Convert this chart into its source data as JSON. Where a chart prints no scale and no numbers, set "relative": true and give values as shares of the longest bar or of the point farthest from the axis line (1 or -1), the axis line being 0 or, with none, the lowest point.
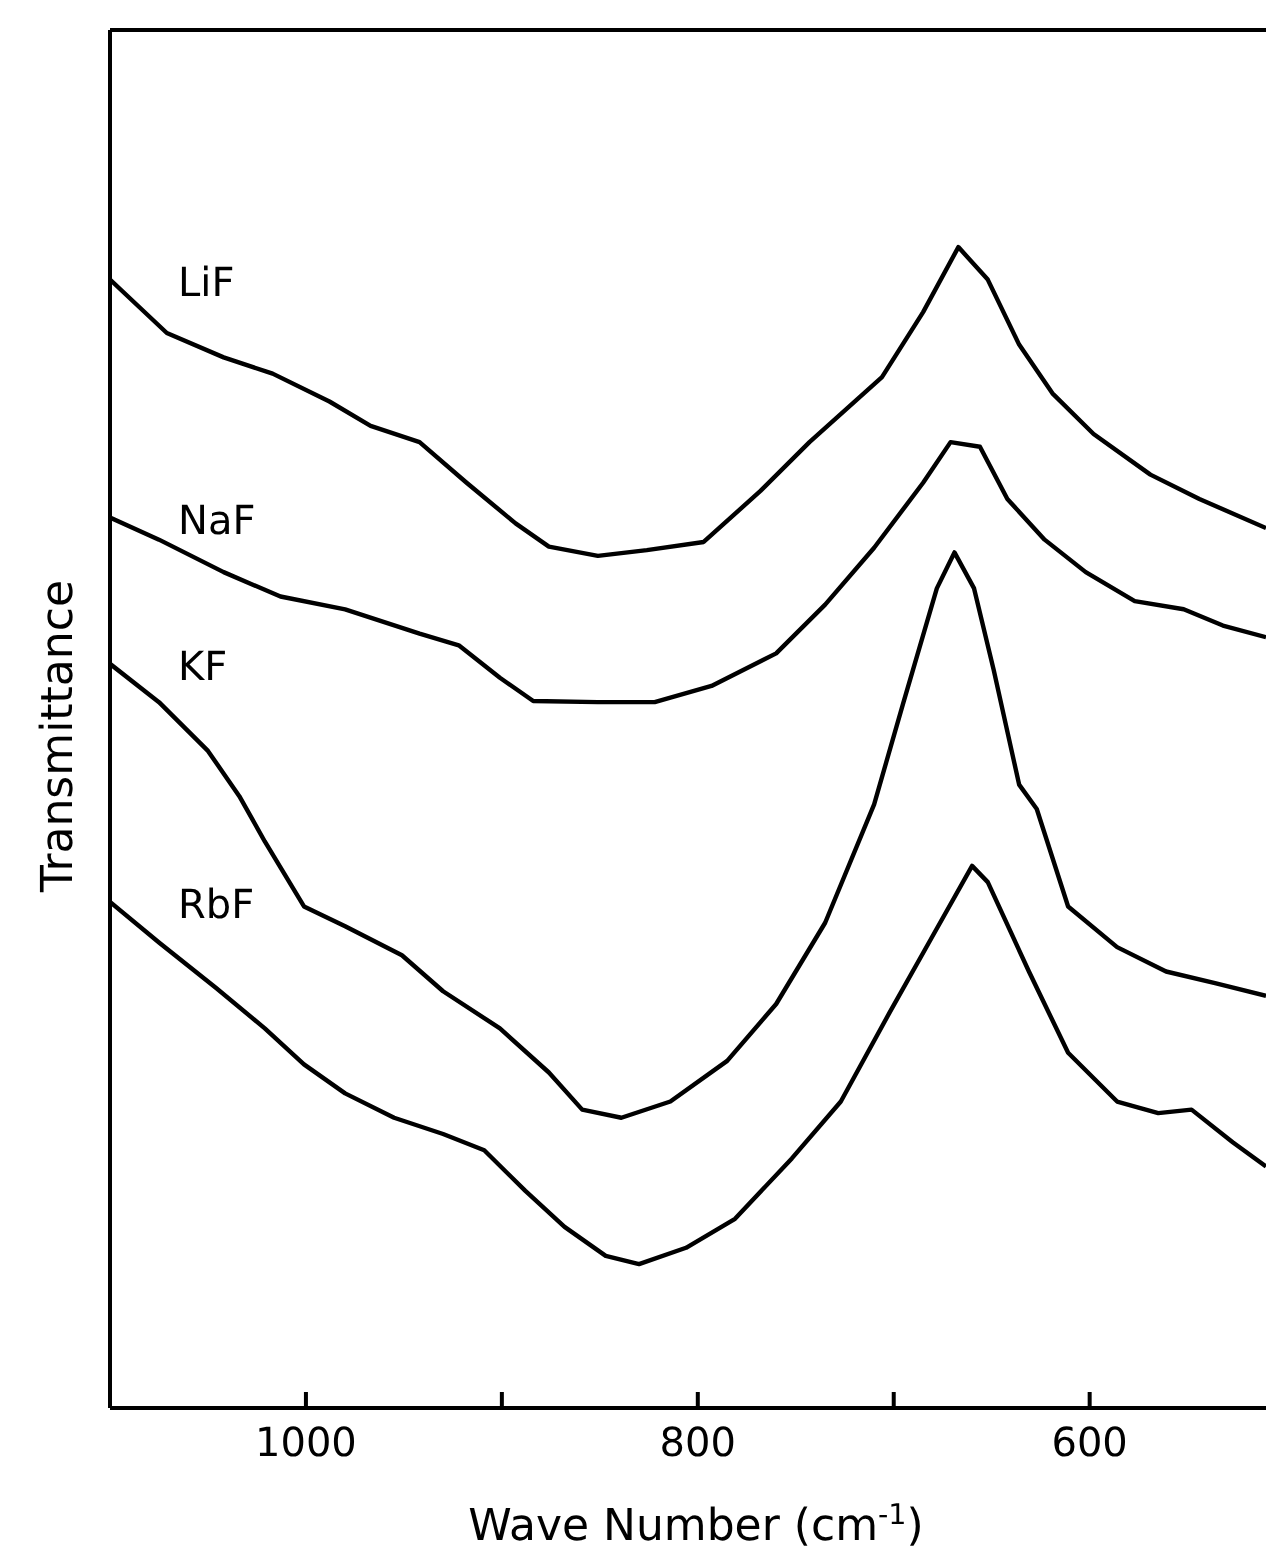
{
  "chart_data": {
    "type": "line",
    "relative": true,
    "xlabel": "Wave Number (cm$^{-1}$)",
    "ylabel": "Transmittance",
    "xlim": [
      1100,
      510
    ],
    "xticks": [
      1000,
      {
        "value": 900,
        "label": null
      },
      800,
      {
        "value": 700,
        "label": null
      },
      600
    ],
    "legend": false,
    "marker": "none",
    "line_style": "solid",
    "series": [
      {
        "name": "LiF",
        "color": "#000000",
        "x": [
          1100,
          1071,
          1042,
          1017,
          988,
          967,
          942,
          918,
          893,
          876,
          851,
          826,
          797,
          768,
          743,
          706,
          685,
          667,
          652,
          636,
          619,
          598,
          569,
          544,
          510
        ],
        "values": [
          0.972,
          0.926,
          0.905,
          0.891,
          0.867,
          0.846,
          0.832,
          0.797,
          0.762,
          0.742,
          0.734,
          0.739,
          0.746,
          0.79,
          0.832,
          0.888,
          0.944,
          1,
          0.972,
          0.916,
          0.874,
          0.839,
          0.804,
          0.783,
          0.758
        ]
      },
      {
        "name": "NaF",
        "color": "#000000",
        "x": [
          1100,
          1075,
          1042,
          1013,
          980,
          942,
          922,
          901,
          884,
          851,
          822,
          793,
          760,
          735,
          710,
          685,
          671,
          656,
          642,
          623,
          602,
          577,
          552,
          532,
          510
        ],
        "values": [
          0.767,
          0.748,
          0.72,
          0.699,
          0.688,
          0.667,
          0.657,
          0.629,
          0.609,
          0.608,
          0.608,
          0.622,
          0.65,
          0.692,
          0.741,
          0.797,
          0.832,
          0.828,
          0.783,
          0.748,
          0.72,
          0.695,
          0.688,
          0.674,
          0.664
        ]
      },
      {
        "name": "KF",
        "color": "#000000",
        "x": [
          1100,
          1075,
          1050,
          1034,
          1021,
          1001,
          980,
          951,
          930,
          901,
          876,
          859,
          839,
          814,
          785,
          760,
          735,
          710,
          695,
          678,
          669,
          659,
          649,
          636,
          627,
          611,
          586,
          561,
          536,
          510
        ],
        "values": [
          0.641,
          0.608,
          0.566,
          0.527,
          0.488,
          0.432,
          0.415,
          0.39,
          0.359,
          0.327,
          0.289,
          0.257,
          0.25,
          0.264,
          0.299,
          0.348,
          0.418,
          0.52,
          0.608,
          0.706,
          0.737,
          0.706,
          0.636,
          0.537,
          0.516,
          0.432,
          0.397,
          0.376,
          0.366,
          0.355
        ]
      },
      {
        "name": "RbF",
        "color": "#000000",
        "x": [
          1100,
          1075,
          1046,
          1021,
          1001,
          980,
          955,
          930,
          909,
          888,
          868,
          847,
          830,
          806,
          781,
          752,
          727,
          702,
          681,
          660,
          652,
          631,
          611,
          586,
          565,
          548,
          527,
          510
        ],
        "values": [
          0.436,
          0.401,
          0.362,
          0.327,
          0.296,
          0.271,
          0.25,
          0.236,
          0.222,
          0.187,
          0.156,
          0.131,
          0.124,
          0.138,
          0.163,
          0.215,
          0.264,
          0.341,
          0.404,
          0.467,
          0.453,
          0.376,
          0.306,
          0.264,
          0.254,
          0.257,
          0.229,
          0.208
        ]
      }
    ]
  }
}
